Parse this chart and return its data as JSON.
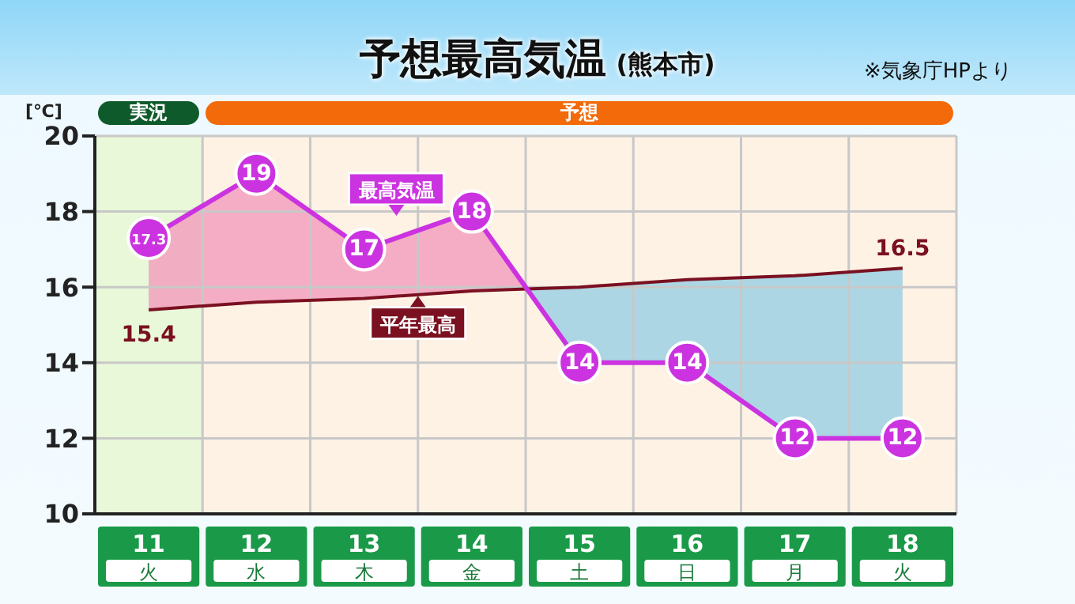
{
  "chart_data": {
    "type": "line",
    "title": "予想最高気温",
    "subtitle": "(熊本市)",
    "annotations": [
      "※気象庁HPより"
    ],
    "ylabel": "[℃]",
    "categories": [
      "11\n火",
      "12\n水",
      "13\n木",
      "14\n金",
      "15\n土",
      "16\n日",
      "17\n月",
      "18\n火"
    ],
    "series": [
      {
        "name": "最高気温",
        "color": "#cc33e0",
        "values": [
          17.3,
          19,
          17,
          18,
          14,
          14,
          12,
          12
        ],
        "value_labels": [
          "17.3",
          "19",
          "17",
          "18",
          "14",
          "14",
          "12",
          "12"
        ],
        "marker": "circle"
      },
      {
        "name": "平年最高",
        "color": "#7a1020",
        "values": [
          15.4,
          15.6,
          15.7,
          15.9,
          16.0,
          16.2,
          16.3,
          16.5
        ],
        "value_labels": [
          "15.4",
          null,
          null,
          null,
          null,
          null,
          null,
          "16.5"
        ],
        "marker": "none"
      }
    ],
    "bands": [
      {
        "axis": "x",
        "from": "11\n火",
        "to": "11\n火",
        "label": "実況",
        "color": "#e8f8d8"
      },
      {
        "axis": "x",
        "from": "12\n水",
        "to": "18\n火",
        "label": "予想",
        "color": "#fdf2e4"
      }
    ],
    "ylim": [
      10,
      20
    ],
    "yticks": [
      10,
      12,
      14,
      16,
      18,
      20
    ],
    "grid": true,
    "legend": "top"
  }
}
